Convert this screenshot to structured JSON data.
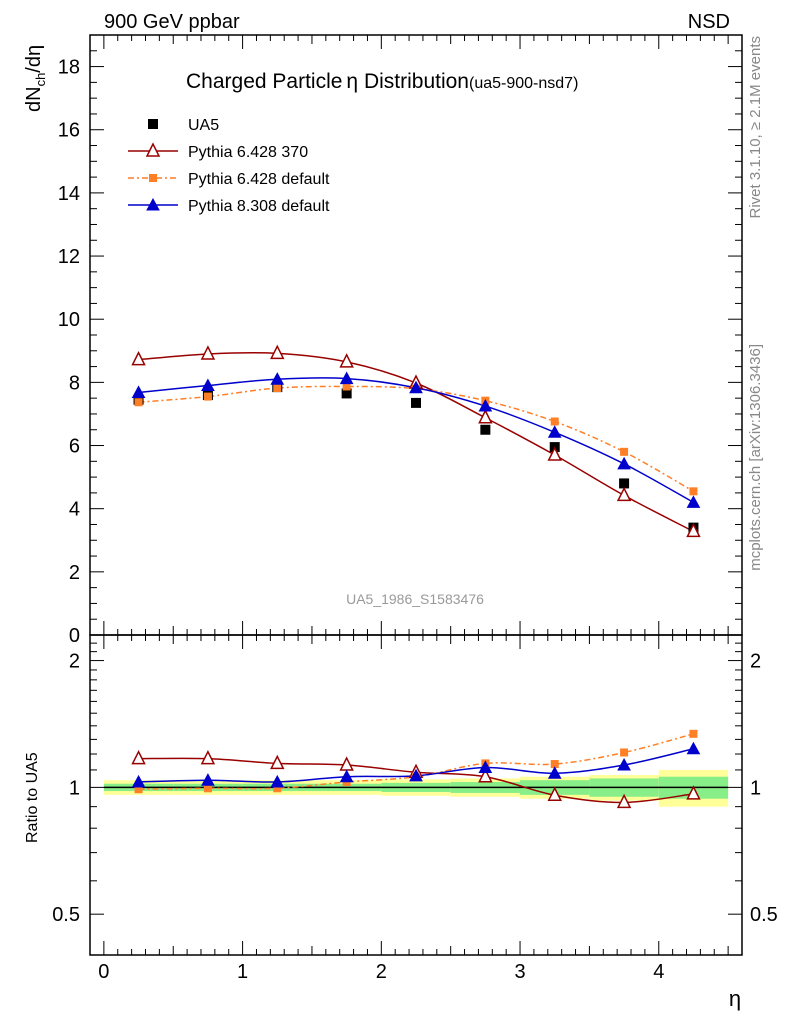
{
  "header": {
    "left": "900 GeV ppbar",
    "right": "NSD"
  },
  "side_labels": {
    "rivet": "Rivet 3.1.10, ≥ 2.1M events",
    "mcplots": "mcplots.cern.ch [arXiv:1306.3436]"
  },
  "chart_data": {
    "type": "scatter",
    "title_main": "Charged Particle",
    "title_symbol": "η",
    "title_rest": " Distribution",
    "title_tag": "(ua5-900-nsd7)",
    "watermark": "UA5_1986_S1583476",
    "xlabel": "η",
    "ylabel_main": "dN",
    "ylabel_sub": "ch",
    "ylabel_tail": "/dη",
    "ratio_ylabel": "Ratio to UA5",
    "xlim": [
      -0.1,
      4.6
    ],
    "ylim_main": [
      0,
      19
    ],
    "ylim_ratio": [
      0.4,
      2.3
    ],
    "log_ratio": true,
    "x_ticks": [
      0,
      1,
      2,
      3,
      4
    ],
    "x_tick_labels": [
      "0",
      "1",
      "2",
      "3",
      "4"
    ],
    "y_ticks_main": [
      0,
      2,
      4,
      6,
      8,
      10,
      12,
      14,
      16,
      18
    ],
    "y_tick_labels_main": [
      "0",
      "2",
      "4",
      "6",
      "8",
      "10",
      "12",
      "14",
      "16",
      "18"
    ],
    "y_ticks_ratio": [
      0.5,
      1,
      2
    ],
    "y_tick_labels_ratio": [
      "0.5",
      "1",
      "2"
    ],
    "legend_position": "top-left",
    "x": [
      0.25,
      0.75,
      1.25,
      1.75,
      2.25,
      2.75,
      3.25,
      3.75,
      4.25
    ],
    "data": {
      "name": "UA5",
      "values": [
        7.45,
        7.6,
        7.85,
        7.65,
        7.35,
        6.5,
        5.95,
        4.8,
        3.4
      ],
      "color": "#000000"
    },
    "series": [
      {
        "name": "Pythia 6.428 370",
        "values": [
          8.72,
          8.9,
          8.92,
          8.65,
          7.98,
          6.88,
          5.7,
          4.42,
          3.28
        ],
        "ratio": [
          1.17,
          1.17,
          1.14,
          1.13,
          1.086,
          1.06,
          0.958,
          0.921,
          0.965
        ],
        "color": "#990000",
        "marker": "open-triangle",
        "dash": ""
      },
      {
        "name": "Pythia 6.428 default",
        "values": [
          7.37,
          7.55,
          7.82,
          7.87,
          7.8,
          7.42,
          6.76,
          5.8,
          4.55
        ],
        "ratio": [
          0.99,
          0.995,
          0.995,
          1.03,
          1.06,
          1.14,
          1.136,
          1.21,
          1.34
        ],
        "color": "#ff7f27",
        "marker": "filled-square",
        "dash": "6,3,2,3"
      },
      {
        "name": "Pythia 8.308 default",
        "values": [
          7.68,
          7.9,
          8.1,
          8.12,
          7.83,
          7.25,
          6.42,
          5.42,
          4.2
        ],
        "ratio": [
          1.03,
          1.04,
          1.03,
          1.06,
          1.065,
          1.115,
          1.08,
          1.13,
          1.235
        ],
        "color": "#0000cc",
        "marker": "filled-triangle",
        "dash": ""
      }
    ],
    "ratio_bands": {
      "x_edges": [
        0.0,
        0.5,
        1.0,
        1.5,
        2.0,
        2.5,
        3.0,
        3.5,
        4.0,
        4.5
      ],
      "inner": [
        0.02,
        0.02,
        0.02,
        0.02,
        0.025,
        0.03,
        0.04,
        0.05,
        0.06
      ],
      "outer": [
        0.04,
        0.04,
        0.04,
        0.04,
        0.045,
        0.05,
        0.06,
        0.07,
        0.1
      ],
      "inner_color": "#88ee88",
      "outer_color": "#ffff99"
    }
  }
}
